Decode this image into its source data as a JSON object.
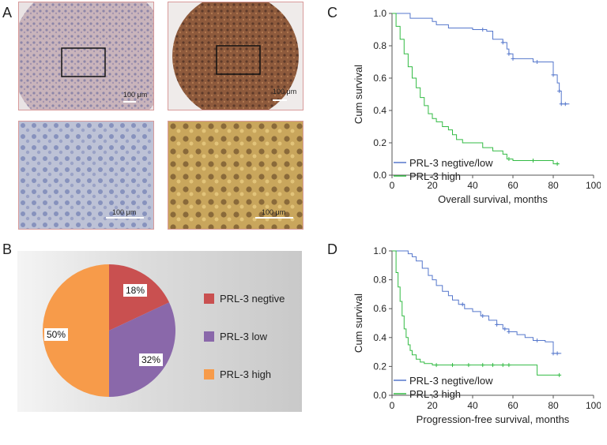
{
  "panels": {
    "a": "A",
    "b": "B",
    "c": "C",
    "d": "D"
  },
  "micrographs": {
    "top_left_scale": "100 μm",
    "top_right_scale": "100 μm",
    "bottom_left_scale": "100 μm",
    "bottom_right_scale": "100 μm"
  },
  "chart_data": [
    {
      "id": "pie",
      "type": "pie",
      "title": "",
      "slices": [
        {
          "label": "PRL-3 negtive",
          "value": 18,
          "pct_label": "18%",
          "color": "#c95050"
        },
        {
          "label": "PRL-3 low",
          "value": 32,
          "pct_label": "32%",
          "color": "#8a68aa"
        },
        {
          "label": "PRL-3 high",
          "value": 50,
          "pct_label": "50%",
          "color": "#f79b4a"
        }
      ],
      "legend_position": "right"
    },
    {
      "id": "os",
      "type": "line",
      "xlabel": "Overall survival, months",
      "ylabel": "Cum survival",
      "xlim": [
        0,
        100
      ],
      "ylim": [
        0,
        1.0
      ],
      "xticks": [
        "0",
        "20",
        "40",
        "60",
        "80",
        "100"
      ],
      "yticks": [
        "0.0",
        "0.2",
        "0.4",
        "0.6",
        "0.8",
        "1.0"
      ],
      "legend_position": "bottom-left",
      "series": [
        {
          "name": "PRL-3 negtive/low",
          "color": "#5577cc",
          "x": [
            0,
            8,
            9,
            15,
            20,
            22,
            28,
            40,
            47,
            50,
            55,
            57,
            58,
            60,
            70,
            78,
            80,
            82,
            83,
            84,
            88
          ],
          "y": [
            1.0,
            1.0,
            0.97,
            0.97,
            0.95,
            0.93,
            0.91,
            0.9,
            0.89,
            0.84,
            0.82,
            0.78,
            0.75,
            0.72,
            0.7,
            0.7,
            0.62,
            0.57,
            0.52,
            0.44,
            0.44
          ],
          "censor_x": [
            45,
            55,
            58,
            60,
            72,
            80,
            83,
            84,
            86
          ]
        },
        {
          "name": "PRL-3 high",
          "color": "#33bb44",
          "x": [
            0,
            2,
            4,
            6,
            8,
            10,
            12,
            14,
            16,
            18,
            20,
            22,
            25,
            28,
            30,
            32,
            35,
            40,
            45,
            50,
            55,
            57,
            60,
            70,
            80,
            83
          ],
          "y": [
            1.0,
            0.92,
            0.84,
            0.75,
            0.67,
            0.6,
            0.54,
            0.48,
            0.43,
            0.38,
            0.35,
            0.33,
            0.3,
            0.28,
            0.25,
            0.22,
            0.2,
            0.2,
            0.17,
            0.15,
            0.13,
            0.1,
            0.09,
            0.09,
            0.07,
            0.07
          ],
          "censor_x": [
            58,
            70,
            82
          ]
        }
      ]
    },
    {
      "id": "pfs",
      "type": "line",
      "xlabel": "Progression-free survival, months",
      "ylabel": "Cum survival",
      "xlim": [
        0,
        100
      ],
      "ylim": [
        0,
        1.0
      ],
      "xticks": [
        "0",
        "20",
        "40",
        "60",
        "80",
        "100"
      ],
      "yticks": [
        "0.0",
        "0.2",
        "0.4",
        "0.6",
        "0.8",
        "1.0"
      ],
      "legend_position": "bottom-left",
      "series": [
        {
          "name": "PRL-3 negtive/low",
          "color": "#5577cc",
          "x": [
            0,
            6,
            8,
            10,
            12,
            15,
            18,
            20,
            22,
            25,
            28,
            30,
            33,
            36,
            40,
            44,
            48,
            52,
            55,
            58,
            62,
            66,
            70,
            76,
            80,
            84
          ],
          "y": [
            1.0,
            1.0,
            0.98,
            0.96,
            0.93,
            0.88,
            0.83,
            0.8,
            0.76,
            0.72,
            0.69,
            0.66,
            0.63,
            0.6,
            0.58,
            0.55,
            0.52,
            0.49,
            0.46,
            0.44,
            0.42,
            0.4,
            0.38,
            0.37,
            0.29,
            0.29
          ],
          "censor_x": [
            35,
            45,
            52,
            56,
            58,
            72,
            80,
            82
          ]
        },
        {
          "name": "PRL-3 high",
          "color": "#33bb44",
          "x": [
            0,
            2,
            3,
            4,
            5,
            6,
            7,
            8,
            9,
            10,
            12,
            14,
            16,
            20,
            70,
            72,
            83
          ],
          "y": [
            1.0,
            0.85,
            0.75,
            0.65,
            0.55,
            0.46,
            0.4,
            0.35,
            0.31,
            0.28,
            0.25,
            0.23,
            0.22,
            0.21,
            0.21,
            0.14,
            0.14
          ],
          "censor_x": [
            22,
            30,
            38,
            45,
            50,
            55,
            58,
            83
          ]
        }
      ]
    }
  ]
}
